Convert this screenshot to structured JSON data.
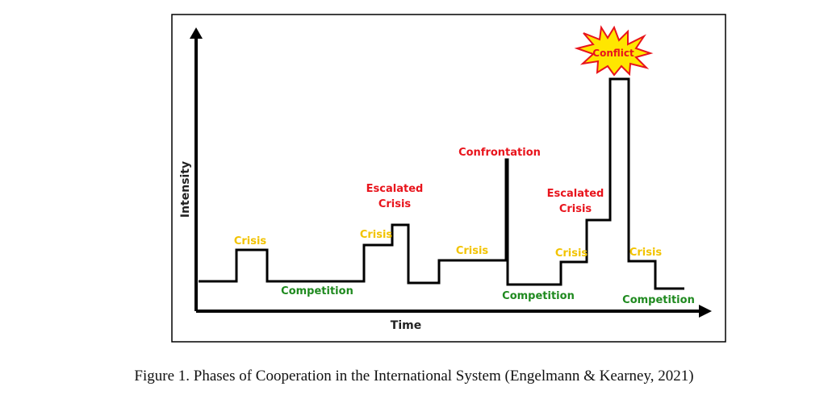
{
  "diagram": {
    "axes": {
      "y_label": "Intensity",
      "x_label": "Time"
    },
    "labels": [
      {
        "id": "crisis-1",
        "lines": [
          "Crisis"
        ],
        "kind": "crisis"
      },
      {
        "id": "competition-1",
        "lines": [
          "Competition"
        ],
        "kind": "competition"
      },
      {
        "id": "crisis-2",
        "lines": [
          "Crisis"
        ],
        "kind": "crisis"
      },
      {
        "id": "escalated-crisis-1",
        "lines": [
          "Escalated",
          "Crisis"
        ],
        "kind": "escalated"
      },
      {
        "id": "crisis-3",
        "lines": [
          "Crisis"
        ],
        "kind": "crisis"
      },
      {
        "id": "confrontation",
        "lines": [
          "Confrontation"
        ],
        "kind": "escalated"
      },
      {
        "id": "competition-2",
        "lines": [
          "Competition"
        ],
        "kind": "competition"
      },
      {
        "id": "crisis-4",
        "lines": [
          "Crisis"
        ],
        "kind": "crisis"
      },
      {
        "id": "escalated-crisis-2",
        "lines": [
          "Escalated",
          "Crisis"
        ],
        "kind": "escalated"
      },
      {
        "id": "crisis-5",
        "lines": [
          "Crisis"
        ],
        "kind": "crisis"
      },
      {
        "id": "competition-3",
        "lines": [
          "Competition"
        ],
        "kind": "competition"
      }
    ],
    "conflict_burst": {
      "text": "Conflict"
    }
  },
  "colors": {
    "crisis": "#f2c300",
    "competition": "#1f8a1f",
    "escalated": "#e8141c",
    "line": "#000000",
    "burst_fill": "#ffe600",
    "burst_stroke": "#e8141c"
  },
  "caption": "Figure 1. Phases of Cooperation in the International System (Engelmann & Kearney, 2021)"
}
